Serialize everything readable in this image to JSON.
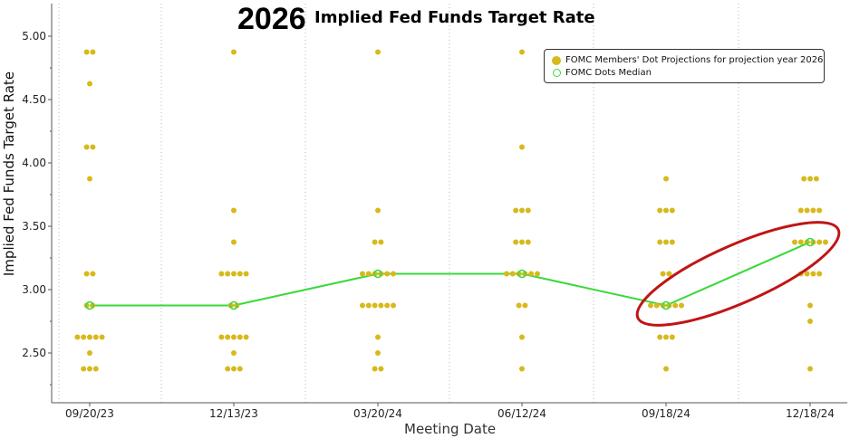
{
  "header": {
    "year": "2026",
    "title": "Implied Fed Funds Target Rate"
  },
  "legend": {
    "dots_label": "FOMC Members' Dot Projections for projection year 2026",
    "median_label": "FOMC Dots Median"
  },
  "colors": {
    "dots": "#d8b91b",
    "median": "#3ad83a",
    "highlight": "#c01515",
    "axis": "#555555"
  },
  "chart_data": {
    "type": "scatter",
    "title": "2026 Implied Fed Funds Target Rate",
    "xlabel": "Meeting Date",
    "ylabel": "Implied Fed Funds Target Rate",
    "categories": [
      "09/20/23",
      "12/13/23",
      "03/20/24",
      "06/12/24",
      "09/18/24",
      "12/18/24"
    ],
    "yticks": [
      "2.50",
      "3.00",
      "3.50",
      "4.00",
      "4.50",
      "5.00"
    ],
    "ylim": [
      2.2,
      5.25
    ],
    "grid": "vertical",
    "legend_position": "top-right",
    "series": [
      {
        "name": "FOMC Members' Dot Projections for projection year 2026",
        "points": [
          [
            [
              4.875,
              2
            ],
            [
              4.625,
              1
            ],
            [
              4.125,
              2
            ],
            [
              3.875,
              1
            ],
            [
              3.125,
              2
            ],
            [
              2.875,
              2
            ],
            [
              2.625,
              5
            ],
            [
              2.5,
              1
            ],
            [
              2.375,
              3
            ]
          ],
          [
            [
              4.875,
              1
            ],
            [
              3.625,
              1
            ],
            [
              3.375,
              1
            ],
            [
              3.125,
              5
            ],
            [
              2.875,
              2
            ],
            [
              2.625,
              5
            ],
            [
              2.5,
              1
            ],
            [
              2.375,
              3
            ]
          ],
          [
            [
              4.875,
              1
            ],
            [
              3.625,
              1
            ],
            [
              3.375,
              2
            ],
            [
              3.125,
              6
            ],
            [
              2.875,
              6
            ],
            [
              2.625,
              1
            ],
            [
              2.5,
              1
            ],
            [
              2.375,
              2
            ]
          ],
          [
            [
              4.875,
              1
            ],
            [
              4.125,
              1
            ],
            [
              3.625,
              3
            ],
            [
              3.375,
              3
            ],
            [
              3.125,
              6
            ],
            [
              2.875,
              2
            ],
            [
              2.625,
              1
            ],
            [
              2.375,
              1
            ]
          ],
          [
            [
              3.875,
              1
            ],
            [
              3.625,
              3
            ],
            [
              3.375,
              3
            ],
            [
              3.125,
              2
            ],
            [
              2.875,
              6
            ],
            [
              2.625,
              3
            ],
            [
              2.375,
              1
            ]
          ],
          [
            [
              3.875,
              3
            ],
            [
              3.625,
              4
            ],
            [
              3.375,
              6
            ],
            [
              3.125,
              4
            ],
            [
              2.875,
              1
            ],
            [
              2.75,
              1
            ],
            [
              2.375,
              1
            ]
          ]
        ]
      },
      {
        "name": "FOMC Dots Median",
        "values": [
          2.875,
          2.875,
          3.125,
          3.125,
          2.875,
          3.375
        ]
      }
    ],
    "annotations": [
      {
        "type": "ellipse-highlight",
        "from_category": "09/18/24",
        "to_category": "12/18/24"
      }
    ]
  }
}
